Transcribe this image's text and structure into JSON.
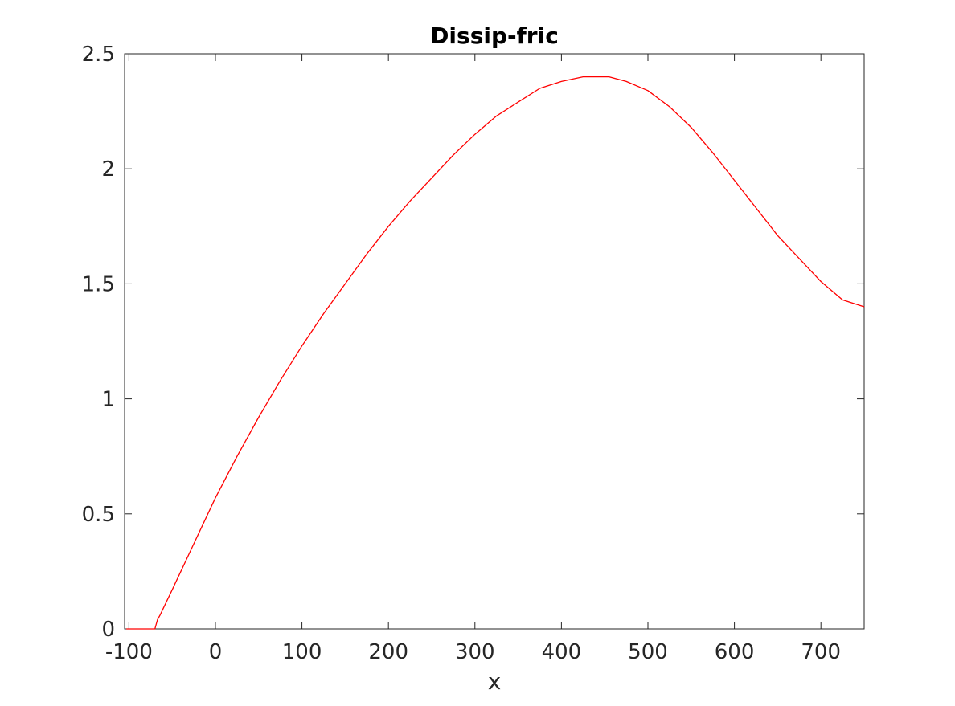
{
  "chart_data": {
    "type": "line",
    "title": "Dissip-fric",
    "xlabel": "x",
    "ylabel": "",
    "xlim": [
      -105,
      750
    ],
    "ylim": [
      0,
      2.5
    ],
    "x_ticks": [
      -100,
      0,
      100,
      200,
      300,
      400,
      500,
      600,
      700
    ],
    "x_tick_labels": [
      "-100",
      "0",
      "100",
      "200",
      "300",
      "400",
      "500",
      "600",
      "700"
    ],
    "y_ticks": [
      0,
      0.5,
      1,
      1.5,
      2,
      2.5
    ],
    "y_tick_labels": [
      "0",
      "0.5",
      "1",
      "1.5",
      "2",
      "2.5"
    ],
    "grid": false,
    "box": true,
    "series": [
      {
        "color": "#ff0000",
        "x": [
          -103,
          -70,
          -67,
          -64,
          -50,
          -25,
          0,
          25,
          50,
          75,
          100,
          125,
          150,
          175,
          200,
          225,
          250,
          275,
          300,
          325,
          350,
          375,
          400,
          425,
          440,
          455,
          475,
          500,
          525,
          550,
          575,
          600,
          625,
          650,
          675,
          700,
          725,
          750
        ],
        "y": [
          0,
          0,
          0.04,
          0.06,
          0.17,
          0.37,
          0.57,
          0.75,
          0.92,
          1.08,
          1.23,
          1.37,
          1.5,
          1.63,
          1.75,
          1.86,
          1.96,
          2.06,
          2.15,
          2.23,
          2.29,
          2.35,
          2.38,
          2.4,
          2.4,
          2.4,
          2.38,
          2.34,
          2.27,
          2.18,
          2.07,
          1.95,
          1.83,
          1.71,
          1.61,
          1.51,
          1.43,
          1.4
        ]
      }
    ]
  }
}
